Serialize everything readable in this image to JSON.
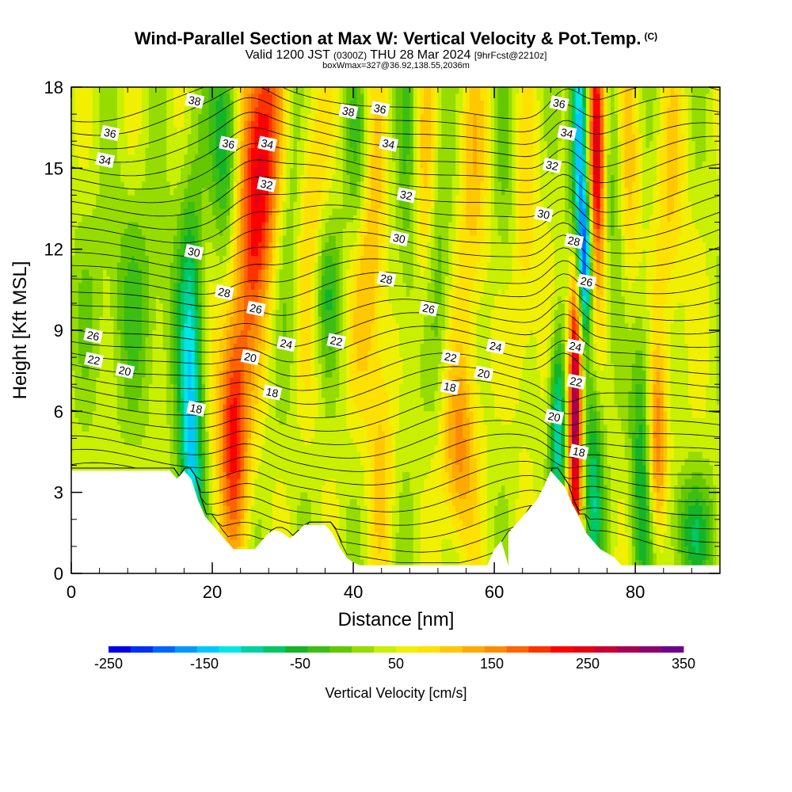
{
  "title": {
    "main": "Wind-Parallel Section at Max W: Vertical Velocity & Pot.Temp.",
    "copyright": "(C)",
    "valid_a": "Valid 1200 JST",
    "valid_utc": "(0300Z)",
    "valid_b": "THU 28 Mar 2024",
    "forecast": "[9hrFcst@2210z]",
    "box": "boxWmax=327@36.92,138.55,2036m"
  },
  "chart_data": {
    "type": "heatmap",
    "xlabel": "Distance [nm]",
    "ylabel": "Height [Kft MSL]",
    "xlim": [
      0,
      92
    ],
    "ylim": [
      0,
      18
    ],
    "x_ticks": [
      0,
      20,
      40,
      60,
      80
    ],
    "y_ticks": [
      0,
      3,
      6,
      9,
      12,
      15,
      18
    ],
    "colorbar": {
      "title": "Vertical Velocity [cm/s]",
      "min": -250,
      "max": 350,
      "labels": [
        -250,
        -150,
        -50,
        50,
        150,
        250,
        350
      ],
      "colors": [
        "#0000e6",
        "#0030f0",
        "#0066ff",
        "#0099ff",
        "#00c8ff",
        "#00e6e6",
        "#00d2a0",
        "#00c864",
        "#14b428",
        "#3cbe14",
        "#64c800",
        "#96dc00",
        "#c8f000",
        "#f0f000",
        "#ffe100",
        "#ffc800",
        "#ffaa00",
        "#ff8c00",
        "#ff6400",
        "#ff3200",
        "#ff0000",
        "#e60014",
        "#c80032",
        "#aa0050",
        "#8c006e",
        "#6e008c"
      ]
    },
    "background_value_cm_s": 40,
    "terrain_kft": [
      [
        0,
        3.8
      ],
      [
        14,
        3.8
      ],
      [
        15,
        3.5
      ],
      [
        16,
        3.8
      ],
      [
        17,
        3.5
      ],
      [
        18,
        2.7
      ],
      [
        19,
        2.1
      ],
      [
        20,
        1.8
      ],
      [
        21,
        1.5
      ],
      [
        22,
        1.2
      ],
      [
        23,
        0.9
      ],
      [
        26,
        0.9
      ],
      [
        27,
        1.2
      ],
      [
        28,
        1.5
      ],
      [
        29,
        1.6
      ],
      [
        30,
        1.5
      ],
      [
        31,
        1.3
      ],
      [
        32,
        1.5
      ],
      [
        33,
        1.8
      ],
      [
        36,
        1.8
      ],
      [
        37,
        1.5
      ],
      [
        38,
        1.0
      ],
      [
        39,
        0.6
      ],
      [
        40,
        0.4
      ],
      [
        41,
        0.3
      ],
      [
        62,
        0.3
      ],
      [
        53,
        0.3
      ],
      [
        59,
        0.3
      ],
      [
        60,
        0.9
      ],
      [
        61,
        1.2
      ],
      [
        62,
        1.5
      ],
      [
        63,
        1.8
      ],
      [
        64,
        2.1
      ],
      [
        65,
        2.4
      ],
      [
        66,
        2.7
      ],
      [
        67,
        3.2
      ],
      [
        68,
        3.8
      ],
      [
        69,
        3.5
      ],
      [
        70,
        3.2
      ],
      [
        71,
        2.6
      ],
      [
        72,
        2.1
      ],
      [
        73,
        1.5
      ],
      [
        74,
        1.2
      ],
      [
        75,
        0.9
      ],
      [
        77,
        0.6
      ],
      [
        78,
        0.3
      ],
      [
        92,
        0.3
      ]
    ],
    "w_features": [
      {
        "x": 17,
        "y": 4.5,
        "w": -180,
        "sx": 1.2,
        "sy": 6
      },
      {
        "x": 23,
        "y": 5.5,
        "w": 190,
        "sx": 1.6,
        "sy": 3.2
      },
      {
        "x": 22,
        "y": 16,
        "w": -130,
        "sx": 1.5,
        "sy": 3
      },
      {
        "x": 27,
        "y": 16,
        "w": 190,
        "sx": 2.2,
        "sy": 3.5
      },
      {
        "x": 25,
        "y": 12,
        "w": 80,
        "sx": 2.0,
        "sy": 3
      },
      {
        "x": 31,
        "y": 14,
        "w": -60,
        "sx": 1.5,
        "sy": 4
      },
      {
        "x": 34,
        "y": 13,
        "w": 70,
        "sx": 1.6,
        "sy": 4
      },
      {
        "x": 36,
        "y": 10.5,
        "w": -80,
        "sx": 1.5,
        "sy": 2
      },
      {
        "x": 41,
        "y": 15,
        "w": -120,
        "sx": 1.4,
        "sy": 3
      },
      {
        "x": 42,
        "y": 13,
        "w": 130,
        "sx": 1.6,
        "sy": 4
      },
      {
        "x": 44,
        "y": 4.5,
        "w": 60,
        "sx": 1.2,
        "sy": 3
      },
      {
        "x": 48,
        "y": 14,
        "w": -70,
        "sx": 1.3,
        "sy": 5
      },
      {
        "x": 50,
        "y": 14,
        "w": 90,
        "sx": 1.4,
        "sy": 4
      },
      {
        "x": 52,
        "y": 12,
        "w": -60,
        "sx": 1.4,
        "sy": 4
      },
      {
        "x": 55,
        "y": 4.5,
        "w": 110,
        "sx": 1.8,
        "sy": 2.5
      },
      {
        "x": 57,
        "y": 14,
        "w": 70,
        "sx": 1.5,
        "sy": 4
      },
      {
        "x": 62,
        "y": 14,
        "w": -50,
        "sx": 1.5,
        "sy": 4
      },
      {
        "x": 64,
        "y": 12,
        "w": 70,
        "sx": 1.5,
        "sy": 4
      },
      {
        "x": 69,
        "y": 5.5,
        "w": -160,
        "sx": 0.8,
        "sy": 2.5
      },
      {
        "x": 72,
        "y": 15.5,
        "w": -240,
        "sx": 0.9,
        "sy": 4.5
      },
      {
        "x": 71.5,
        "y": 7.0,
        "w": 320,
        "sx": 0.7,
        "sy": 4.0
      },
      {
        "x": 73,
        "y": 11.5,
        "w": -170,
        "sx": 0.7,
        "sy": 1.8
      },
      {
        "x": 74.5,
        "y": 16,
        "w": 250,
        "sx": 0.9,
        "sy": 3.5
      },
      {
        "x": 74,
        "y": 3,
        "w": -120,
        "sx": 1.0,
        "sy": 3
      },
      {
        "x": 77,
        "y": 14,
        "w": -60,
        "sx": 1.2,
        "sy": 4
      },
      {
        "x": 79,
        "y": 14,
        "w": 70,
        "sx": 1.2,
        "sy": 4
      },
      {
        "x": 81,
        "y": 4,
        "w": -110,
        "sx": 1.2,
        "sy": 4
      },
      {
        "x": 83,
        "y": 4.5,
        "w": 140,
        "sx": 1.0,
        "sy": 2.5
      },
      {
        "x": 85,
        "y": 13,
        "w": 60,
        "sx": 1.5,
        "sy": 4
      },
      {
        "x": 9,
        "y": 10,
        "w": -50,
        "sx": 5,
        "sy": 3
      },
      {
        "x": 88,
        "y": 1.5,
        "w": -90,
        "sx": 2.5,
        "sy": 1.5
      }
    ],
    "theta_labels": [
      {
        "text": "38",
        "x": 17.5,
        "y": 17.5
      },
      {
        "text": "36",
        "x": 5.5,
        "y": 16.3
      },
      {
        "text": "34",
        "x": 4.8,
        "y": 15.3
      },
      {
        "text": "36",
        "x": 22.3,
        "y": 15.9
      },
      {
        "text": "34",
        "x": 27.8,
        "y": 15.9
      },
      {
        "text": "32",
        "x": 27.7,
        "y": 14.4
      },
      {
        "text": "38",
        "x": 39.3,
        "y": 17.1
      },
      {
        "text": "36",
        "x": 43.8,
        "y": 17.2
      },
      {
        "text": "34",
        "x": 45.0,
        "y": 15.9
      },
      {
        "text": "32",
        "x": 47.5,
        "y": 14.0
      },
      {
        "text": "30",
        "x": 46.5,
        "y": 12.4
      },
      {
        "text": "28",
        "x": 44.7,
        "y": 10.9
      },
      {
        "text": "26",
        "x": 50.7,
        "y": 9.8
      },
      {
        "text": "36",
        "x": 69.2,
        "y": 17.4
      },
      {
        "text": "34",
        "x": 70.3,
        "y": 16.3
      },
      {
        "text": "32",
        "x": 68.2,
        "y": 15.1
      },
      {
        "text": "30",
        "x": 67.0,
        "y": 13.3
      },
      {
        "text": "28",
        "x": 71.3,
        "y": 12.3
      },
      {
        "text": "26",
        "x": 73.1,
        "y": 10.8
      },
      {
        "text": "30",
        "x": 17.4,
        "y": 11.9
      },
      {
        "text": "28",
        "x": 21.7,
        "y": 10.4
      },
      {
        "text": "26",
        "x": 26.2,
        "y": 9.8
      },
      {
        "text": "26",
        "x": 3.1,
        "y": 8.8
      },
      {
        "text": "22",
        "x": 3.2,
        "y": 7.9
      },
      {
        "text": "20",
        "x": 7.6,
        "y": 7.5
      },
      {
        "text": "24",
        "x": 30.5,
        "y": 8.5
      },
      {
        "text": "22",
        "x": 37.6,
        "y": 8.6
      },
      {
        "text": "20",
        "x": 25.4,
        "y": 8.0
      },
      {
        "text": "18",
        "x": 28.5,
        "y": 6.7
      },
      {
        "text": "18",
        "x": 17.7,
        "y": 6.1
      },
      {
        "text": "22",
        "x": 53.8,
        "y": 8.0
      },
      {
        "text": "24",
        "x": 60.2,
        "y": 8.4
      },
      {
        "text": "20",
        "x": 58.5,
        "y": 7.4
      },
      {
        "text": "18",
        "x": 53.7,
        "y": 6.9
      },
      {
        "text": "24",
        "x": 71.5,
        "y": 8.4
      },
      {
        "text": "22",
        "x": 71.6,
        "y": 7.1
      },
      {
        "text": "20",
        "x": 68.5,
        "y": 5.8
      },
      {
        "text": "18",
        "x": 72.0,
        "y": 4.5
      }
    ]
  }
}
